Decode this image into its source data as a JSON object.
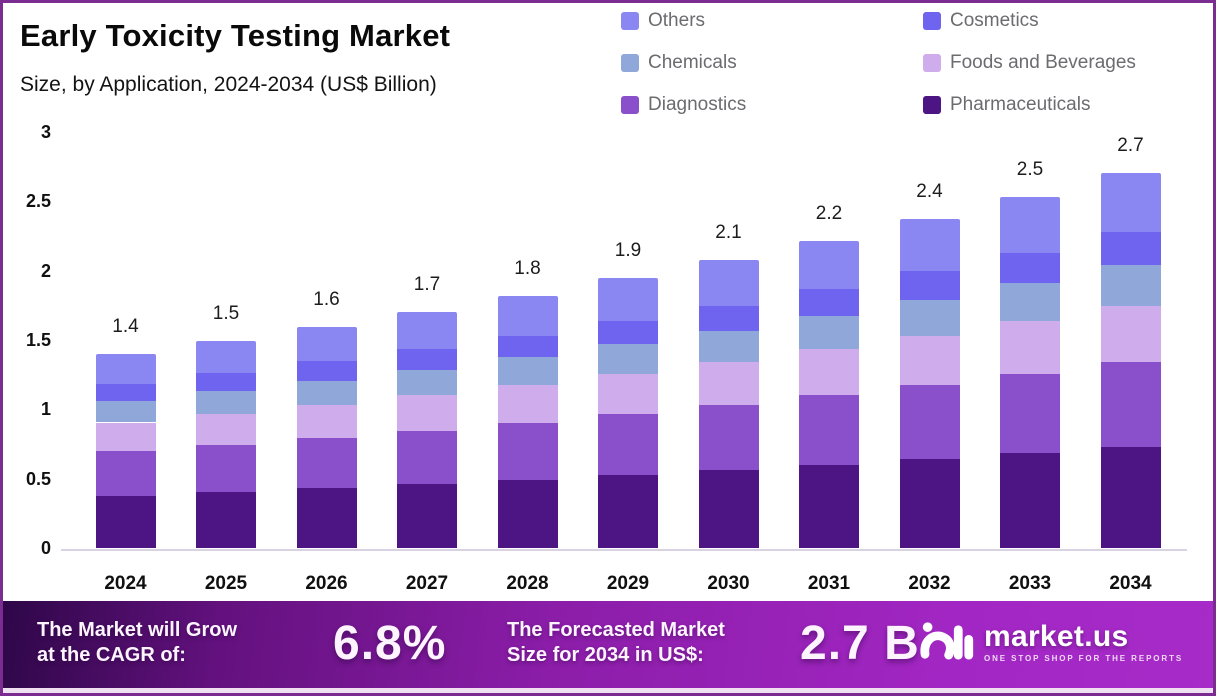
{
  "chart_data": {
    "type": "bar",
    "stacked": true,
    "title": "Early Toxicity Testing Market",
    "subtitle": "Size, by Application, 2024-2034 (US$ Billion)",
    "categories": [
      "2024",
      "2025",
      "2026",
      "2027",
      "2028",
      "2029",
      "2030",
      "2031",
      "2032",
      "2033",
      "2034"
    ],
    "series": [
      {
        "name": "Pharmaceuticals",
        "color": "#4C1583",
        "values": [
          0.378,
          0.404,
          0.431,
          0.46,
          0.492,
          0.525,
          0.561,
          0.599,
          0.64,
          0.683,
          0.73
        ]
      },
      {
        "name": "Diagnostics",
        "color": "#8A50CC",
        "values": [
          0.318,
          0.339,
          0.363,
          0.387,
          0.413,
          0.442,
          0.471,
          0.503,
          0.538,
          0.574,
          0.613
        ]
      },
      {
        "name": "Foods and Beverages",
        "color": "#CFACEC",
        "values": [
          0.209,
          0.223,
          0.238,
          0.254,
          0.271,
          0.29,
          0.309,
          0.33,
          0.353,
          0.377,
          0.403
        ]
      },
      {
        "name": "Chemicals",
        "color": "#8FA7D9",
        "values": [
          0.153,
          0.163,
          0.174,
          0.186,
          0.198,
          0.212,
          0.226,
          0.242,
          0.258,
          0.276,
          0.295
        ]
      },
      {
        "name": "Cosmetics",
        "color": "#6F64EF",
        "values": [
          0.122,
          0.13,
          0.139,
          0.148,
          0.158,
          0.169,
          0.181,
          0.193,
          0.206,
          0.22,
          0.235
        ]
      },
      {
        "name": "Others",
        "color": "#8A87F2",
        "values": [
          0.221,
          0.236,
          0.252,
          0.269,
          0.288,
          0.307,
          0.328,
          0.35,
          0.374,
          0.4,
          0.427
        ]
      }
    ],
    "totals_labels": [
      "1.4",
      "1.5",
      "1.6",
      "1.7",
      "1.8",
      "1.9",
      "2.1",
      "2.2",
      "2.4",
      "2.5",
      "2.7"
    ],
    "legend_order": [
      "Others",
      "Cosmetics",
      "Chemicals",
      "Foods and Beverages",
      "Diagnostics",
      "Pharmaceuticals"
    ],
    "legend_position": "top-right",
    "xlabel": "",
    "ylabel": "",
    "y_axis": {
      "min": 0,
      "max": 3,
      "ticks": [
        "0",
        "0.5",
        "1",
        "1.5",
        "2",
        "2.5",
        "3"
      ]
    },
    "grid": false
  },
  "footer": {
    "cagr_line1": "The Market will Grow",
    "cagr_line2": "at the CAGR of:",
    "cagr_value": "6.8%",
    "forecast_line1": "The Forecasted Market",
    "forecast_line2": "Size for 2034 in US$:",
    "forecast_value": "2.7 B",
    "brand_name": "market.us",
    "brand_tagline": "ONE STOP SHOP FOR THE REPORTS"
  },
  "colors": {
    "frame_border": "#7b2c90",
    "banner_dark": "#2e0748",
    "banner_bright": "#a62bc8",
    "axis_line": "#d9d2e2",
    "legend_text": "#6b6b70"
  }
}
